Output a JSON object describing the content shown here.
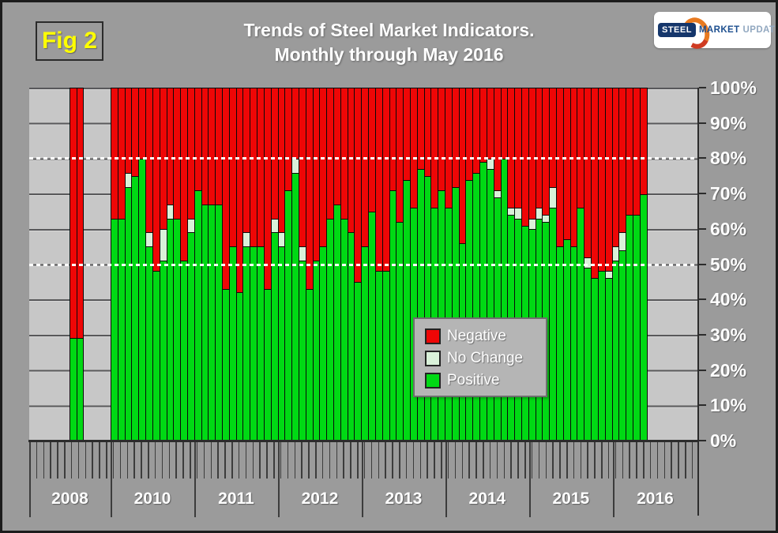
{
  "figure_label": "Fig 2",
  "title": {
    "line1": "Trends of Steel Market Indicators.",
    "line2": "Monthly through May 2016"
  },
  "logo": {
    "steel": "STEEL",
    "market": "MARKET",
    "update": "UPDATE"
  },
  "colors": {
    "negative": "#ee0606",
    "no_change": "#d9f1d9",
    "positive": "#00d914",
    "plot_background": "#c7c7c7",
    "page_background": "#9b9b9b",
    "figure_label": "#ffff00",
    "reference_line": "#ffffff",
    "text": "#ffffff"
  },
  "legend": {
    "items": [
      {
        "label": "Negative",
        "key": "negative"
      },
      {
        "label": "No Change",
        "key": "no_change"
      },
      {
        "label": "Positive",
        "key": "positive"
      }
    ]
  },
  "y_axis": {
    "tick_labels": [
      "100%",
      "90%",
      "80%",
      "70%",
      "60%",
      "50%",
      "40%",
      "30%",
      "20%",
      "10%",
      "0%"
    ],
    "reference_lines_percent": [
      80,
      50
    ]
  },
  "chart_data": {
    "type": "bar",
    "stacked": true,
    "unit": "percent",
    "ylim": [
      0,
      100
    ],
    "grid": true,
    "legend_position": "center",
    "dotted_reference_lines": [
      80,
      50
    ],
    "series_keys": [
      "positive",
      "no_change",
      "negative"
    ],
    "groups": [
      {
        "label": "2008",
        "bars": [
          {
            "label": "2008-1",
            "positive": 29,
            "no_change": 0,
            "negative": 71
          },
          {
            "label": "2008-2",
            "positive": 29,
            "no_change": 0,
            "negative": 71
          }
        ]
      },
      {
        "label": "2010",
        "bars": [
          {
            "label": "Jan 2010",
            "positive": 63,
            "no_change": 0,
            "negative": 37
          },
          {
            "label": "Feb 2010",
            "positive": 63,
            "no_change": 0,
            "negative": 37
          },
          {
            "label": "Mar 2010",
            "positive": 72,
            "no_change": 4,
            "negative": 24
          },
          {
            "label": "Apr 2010",
            "positive": 75,
            "no_change": 0,
            "negative": 25
          },
          {
            "label": "May 2010",
            "positive": 80,
            "no_change": 0,
            "negative": 20
          },
          {
            "label": "Jun 2010",
            "positive": 55,
            "no_change": 4,
            "negative": 41
          },
          {
            "label": "Jul 2010",
            "positive": 48,
            "no_change": 0,
            "negative": 52
          },
          {
            "label": "Aug 2010",
            "positive": 51,
            "no_change": 9,
            "negative": 40
          },
          {
            "label": "Sep 2010",
            "positive": 63,
            "no_change": 4,
            "negative": 33
          },
          {
            "label": "Oct 2010",
            "positive": 63,
            "no_change": 0,
            "negative": 37
          },
          {
            "label": "Nov 2010",
            "positive": 51,
            "no_change": 0,
            "negative": 49
          },
          {
            "label": "Dec 2010",
            "positive": 59,
            "no_change": 4,
            "negative": 37
          }
        ]
      },
      {
        "label": "2011",
        "bars": [
          {
            "label": "Jan 2011",
            "positive": 71,
            "no_change": 0,
            "negative": 29
          },
          {
            "label": "Feb 2011",
            "positive": 67,
            "no_change": 0,
            "negative": 33
          },
          {
            "label": "Mar 2011",
            "positive": 67,
            "no_change": 0,
            "negative": 33
          },
          {
            "label": "Apr 2011",
            "positive": 67,
            "no_change": 0,
            "negative": 33
          },
          {
            "label": "May 2011",
            "positive": 43,
            "no_change": 0,
            "negative": 57
          },
          {
            "label": "Jun 2011",
            "positive": 55,
            "no_change": 0,
            "negative": 45
          },
          {
            "label": "Jul 2011",
            "positive": 42,
            "no_change": 0,
            "negative": 58
          },
          {
            "label": "Aug 2011",
            "positive": 55,
            "no_change": 4,
            "negative": 41
          },
          {
            "label": "Sep 2011",
            "positive": 55,
            "no_change": 0,
            "negative": 45
          },
          {
            "label": "Oct 2011",
            "positive": 55,
            "no_change": 0,
            "negative": 45
          },
          {
            "label": "Nov 2011",
            "positive": 43,
            "no_change": 0,
            "negative": 57
          },
          {
            "label": "Dec 2011",
            "positive": 59,
            "no_change": 4,
            "negative": 37
          }
        ]
      },
      {
        "label": "2012",
        "bars": [
          {
            "label": "Jan 2012",
            "positive": 55,
            "no_change": 4,
            "negative": 41
          },
          {
            "label": "Feb 2012",
            "positive": 71,
            "no_change": 0,
            "negative": 29
          },
          {
            "label": "Mar 2012",
            "positive": 76,
            "no_change": 4,
            "negative": 20
          },
          {
            "label": "Apr 2012",
            "positive": 51,
            "no_change": 4,
            "negative": 45
          },
          {
            "label": "May 2012",
            "positive": 43,
            "no_change": 0,
            "negative": 57
          },
          {
            "label": "Jun 2012",
            "positive": 51,
            "no_change": 0,
            "negative": 49
          },
          {
            "label": "Jul 2012",
            "positive": 55,
            "no_change": 0,
            "negative": 45
          },
          {
            "label": "Aug 2012",
            "positive": 63,
            "no_change": 0,
            "negative": 37
          },
          {
            "label": "Sep 2012",
            "positive": 67,
            "no_change": 0,
            "negative": 33
          },
          {
            "label": "Oct 2012",
            "positive": 63,
            "no_change": 0,
            "negative": 37
          },
          {
            "label": "Nov 2012",
            "positive": 59,
            "no_change": 0,
            "negative": 41
          },
          {
            "label": "Dec 2012",
            "positive": 45,
            "no_change": 0,
            "negative": 55
          }
        ]
      },
      {
        "label": "2013",
        "bars": [
          {
            "label": "Jan 2013",
            "positive": 55,
            "no_change": 0,
            "negative": 45
          },
          {
            "label": "Feb 2013",
            "positive": 65,
            "no_change": 0,
            "negative": 35
          },
          {
            "label": "Mar 2013",
            "positive": 48,
            "no_change": 0,
            "negative": 52
          },
          {
            "label": "Apr 2013",
            "positive": 48,
            "no_change": 0,
            "negative": 52
          },
          {
            "label": "May 2013",
            "positive": 71,
            "no_change": 0,
            "negative": 29
          },
          {
            "label": "Jun 2013",
            "positive": 62,
            "no_change": 0,
            "negative": 38
          },
          {
            "label": "Jul 2013",
            "positive": 74,
            "no_change": 0,
            "negative": 26
          },
          {
            "label": "Aug 2013",
            "positive": 66,
            "no_change": 0,
            "negative": 34
          },
          {
            "label": "Sep 2013",
            "positive": 77,
            "no_change": 0,
            "negative": 23
          },
          {
            "label": "Oct 2013",
            "positive": 75,
            "no_change": 0,
            "negative": 25
          },
          {
            "label": "Nov 2013",
            "positive": 66,
            "no_change": 0,
            "negative": 34
          },
          {
            "label": "Dec 2013",
            "positive": 71,
            "no_change": 0,
            "negative": 29
          }
        ]
      },
      {
        "label": "2014",
        "bars": [
          {
            "label": "Jan 2014",
            "positive": 66,
            "no_change": 0,
            "negative": 34
          },
          {
            "label": "Feb 2014",
            "positive": 72,
            "no_change": 0,
            "negative": 28
          },
          {
            "label": "Mar 2014",
            "positive": 56,
            "no_change": 0,
            "negative": 44
          },
          {
            "label": "Apr 2014",
            "positive": 74,
            "no_change": 0,
            "negative": 26
          },
          {
            "label": "May 2014",
            "positive": 76,
            "no_change": 0,
            "negative": 24
          },
          {
            "label": "Jun 2014",
            "positive": 79,
            "no_change": 0,
            "negative": 21
          },
          {
            "label": "Jul 2014",
            "positive": 77,
            "no_change": 3,
            "negative": 20
          },
          {
            "label": "Aug 2014",
            "positive": 69,
            "no_change": 2,
            "negative": 29
          },
          {
            "label": "Sep 2014",
            "positive": 80,
            "no_change": 0,
            "negative": 20
          },
          {
            "label": "Oct 2014",
            "positive": 64,
            "no_change": 2,
            "negative": 34
          },
          {
            "label": "Nov 2014",
            "positive": 63,
            "no_change": 3,
            "negative": 34
          },
          {
            "label": "Dec 2014",
            "positive": 61,
            "no_change": 0,
            "negative": 39
          }
        ]
      },
      {
        "label": "2015",
        "bars": [
          {
            "label": "Jan 2015",
            "positive": 60,
            "no_change": 3,
            "negative": 37
          },
          {
            "label": "Feb 2015",
            "positive": 63,
            "no_change": 3,
            "negative": 34
          },
          {
            "label": "Mar 2015",
            "positive": 62,
            "no_change": 2,
            "negative": 36
          },
          {
            "label": "Apr 2015",
            "positive": 66,
            "no_change": 6,
            "negative": 28
          },
          {
            "label": "May 2015",
            "positive": 55,
            "no_change": 0,
            "negative": 45
          },
          {
            "label": "Jun 2015",
            "positive": 57,
            "no_change": 0,
            "negative": 43
          },
          {
            "label": "Jul 2015",
            "positive": 55,
            "no_change": 0,
            "negative": 45
          },
          {
            "label": "Aug 2015",
            "positive": 66,
            "no_change": 0,
            "negative": 34
          },
          {
            "label": "Sep 2015",
            "positive": 49,
            "no_change": 3,
            "negative": 48
          },
          {
            "label": "Oct 2015",
            "positive": 46,
            "no_change": 0,
            "negative": 54
          },
          {
            "label": "Nov 2015",
            "positive": 48,
            "no_change": 0,
            "negative": 52
          },
          {
            "label": "Dec 2015",
            "positive": 46,
            "no_change": 2,
            "negative": 52
          }
        ]
      },
      {
        "label": "2016",
        "bars": [
          {
            "label": "Jan 2016",
            "positive": 51,
            "no_change": 4,
            "negative": 45
          },
          {
            "label": "Feb 2016",
            "positive": 54,
            "no_change": 5,
            "negative": 41
          },
          {
            "label": "Mar 2016",
            "positive": 64,
            "no_change": 0,
            "negative": 36
          },
          {
            "label": "Apr 2016",
            "positive": 64,
            "no_change": 0,
            "negative": 36
          },
          {
            "label": "May 2016",
            "positive": 70,
            "no_change": 0,
            "negative": 30
          }
        ]
      }
    ]
  }
}
